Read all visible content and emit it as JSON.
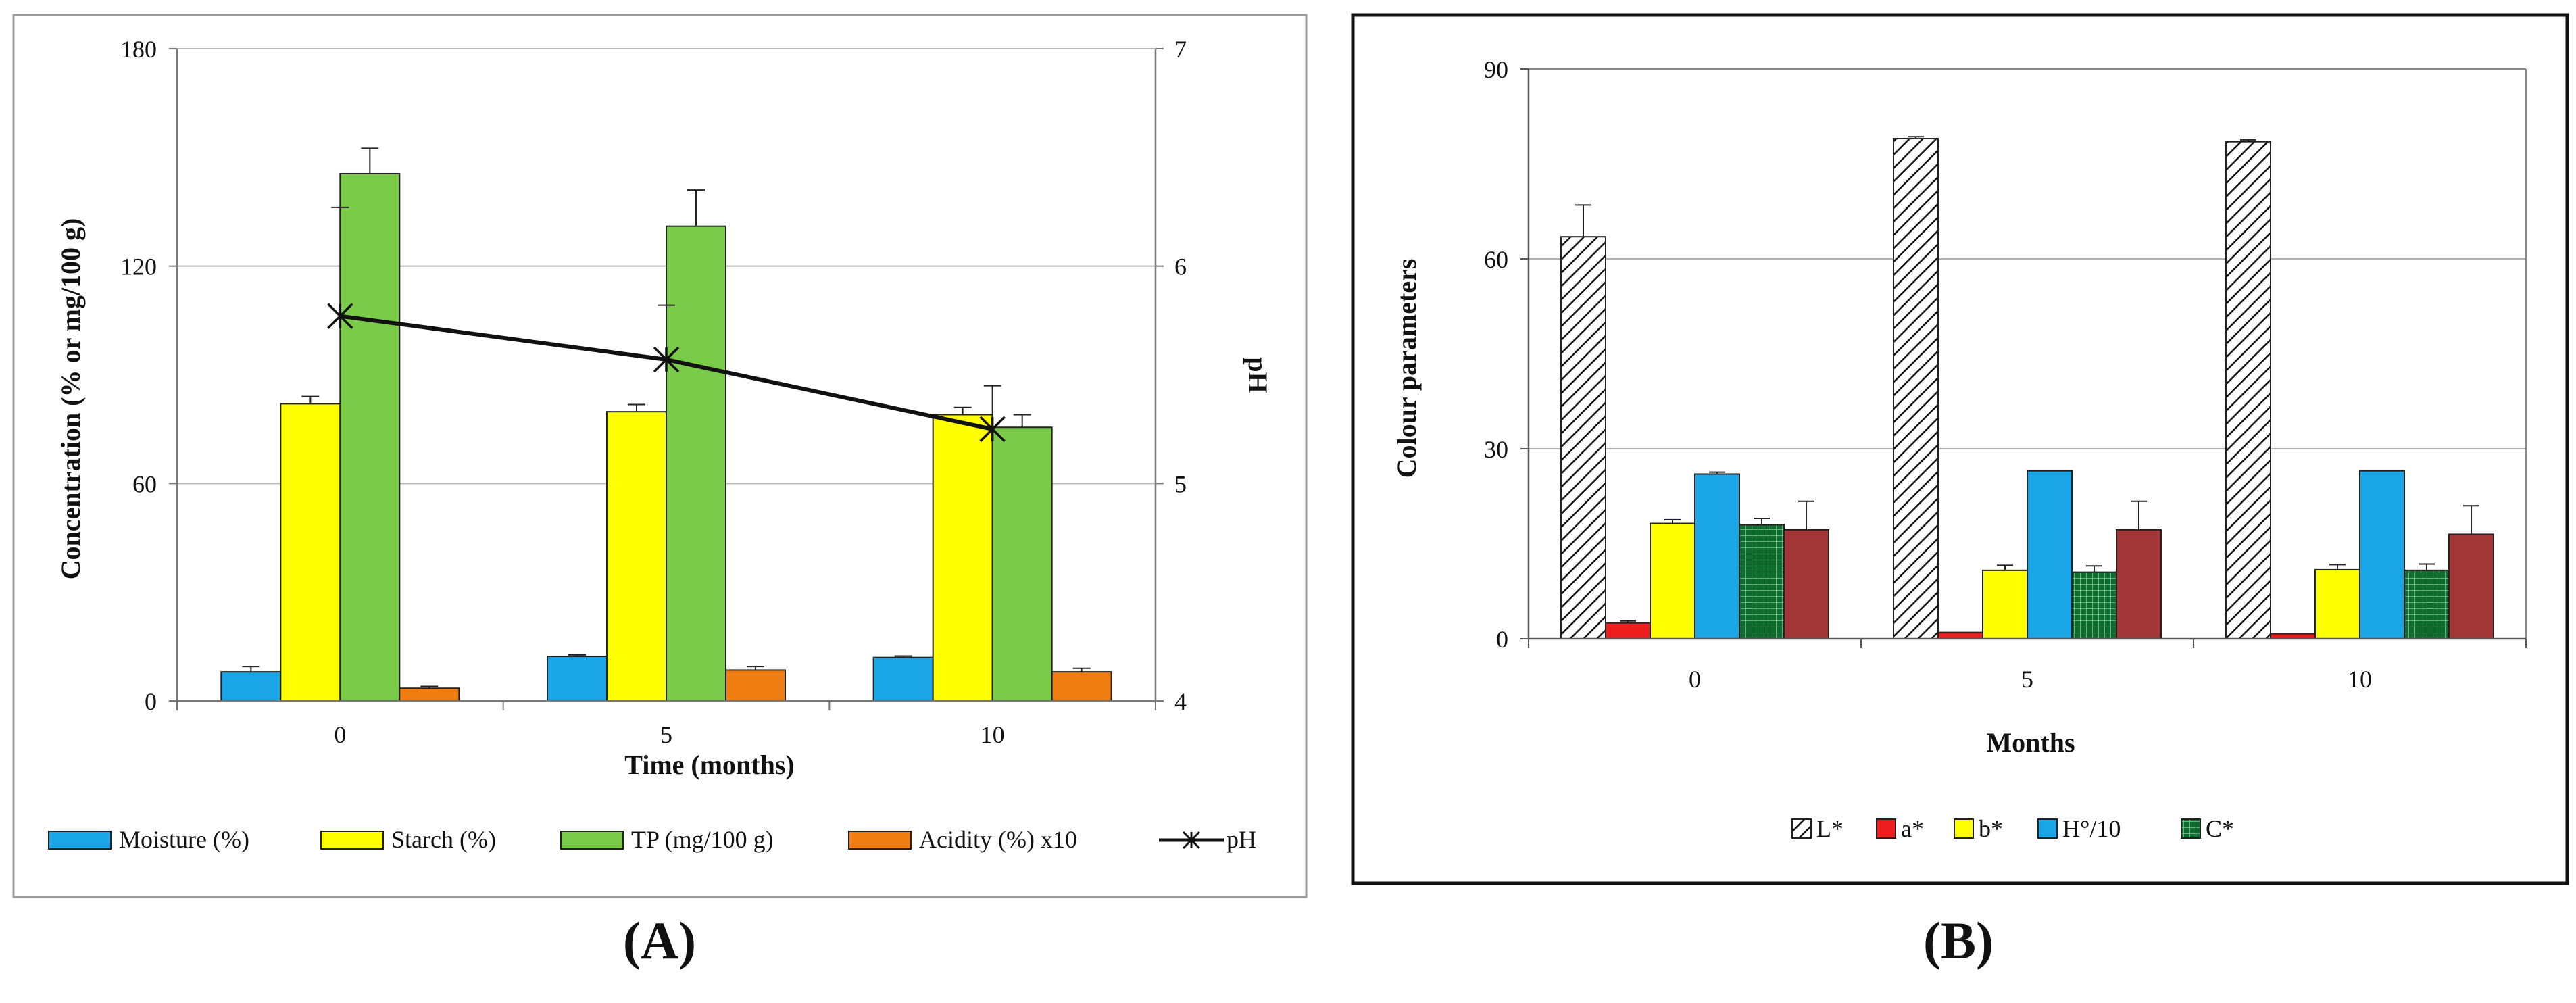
{
  "panels": [
    {
      "label": "(A)",
      "chart_data": {
        "type": "bar",
        "categories": [
          "0",
          "5",
          "10"
        ],
        "xlabel": "Time (months)",
        "ylabel": "Concentration (% or mg/100 g)",
        "ylim": [
          0,
          180
        ],
        "yticks": [
          "0",
          "60",
          "120",
          "180"
        ],
        "y2label": "pH",
        "y2lim": [
          4,
          7
        ],
        "y2ticks": [
          "4",
          "5",
          "6",
          "7"
        ],
        "grid": true,
        "legend_position": "bottom",
        "series": [
          {
            "name": "Moisture (%)",
            "color": "#19A5E6",
            "pattern": "solid",
            "values": [
              8,
              12.3,
              12
            ],
            "errors": [
              1.5,
              0.4,
              0.4
            ]
          },
          {
            "name": "Starch (%)",
            "color": "#FFFF00",
            "pattern": "solid",
            "values": [
              82,
              79.8,
              79
            ],
            "errors": [
              2,
              2,
              2
            ]
          },
          {
            "name": "TP (mg/100 g)",
            "color": "#7BCB4A",
            "pattern": "solid",
            "values": [
              145.5,
              131,
              75.5
            ],
            "errors": [
              7,
              10,
              3.5
            ]
          },
          {
            "name": "Acidity (%) x10",
            "color": "#F07D12",
            "pattern": "solid",
            "values": [
              3.5,
              8.5,
              8
            ],
            "errors": [
              0.5,
              1,
              1
            ]
          }
        ],
        "line_series": {
          "name": "pH",
          "axis": "secondary",
          "marker": "asterisk",
          "color": "#111111",
          "values": [
            5.77,
            5.57,
            5.25
          ],
          "errors": [
            0.5,
            0.25,
            0.2
          ]
        }
      }
    },
    {
      "label": "(B)",
      "chart_data": {
        "type": "bar",
        "categories": [
          "0",
          "5",
          "10"
        ],
        "xlabel": "Months",
        "ylabel": "Colour parameters",
        "ylim": [
          0,
          90
        ],
        "yticks": [
          "0",
          "30",
          "60",
          "90"
        ],
        "grid": true,
        "legend_position": "bottom",
        "series": [
          {
            "name": "L*",
            "color": "#111111",
            "pattern": "diagonal-hatch",
            "values": [
              63.5,
              79,
              78.5
            ],
            "errors": [
              5,
              0.3,
              0.3
            ]
          },
          {
            "name": "a*",
            "color": "#EE1E1E",
            "pattern": "solid",
            "values": [
              2.5,
              1,
              0.8
            ],
            "errors": [
              0.3,
              0,
              0
            ]
          },
          {
            "name": "b*",
            "color": "#FFFF00",
            "pattern": "solid",
            "values": [
              18.2,
              10.8,
              10.9
            ],
            "errors": [
              0.6,
              0.8,
              0.8
            ]
          },
          {
            "name": "H°/10",
            "color": "#19A5E6",
            "pattern": "solid",
            "values": [
              26,
              26.5,
              26.5
            ],
            "errors": [
              0.3,
              0,
              0
            ]
          },
          {
            "name": "C*",
            "color": "#0E6B2E",
            "pattern": "grid-hatch",
            "values": [
              18,
              10.5,
              10.8
            ],
            "errors": [
              1,
              1,
              1
            ]
          },
          {
            "name": "",
            "color": "#A23535",
            "pattern": "solid",
            "values": [
              17.2,
              17.2,
              16.5
            ],
            "errors": [
              4.5,
              4.5,
              4.5
            ]
          }
        ]
      }
    }
  ]
}
